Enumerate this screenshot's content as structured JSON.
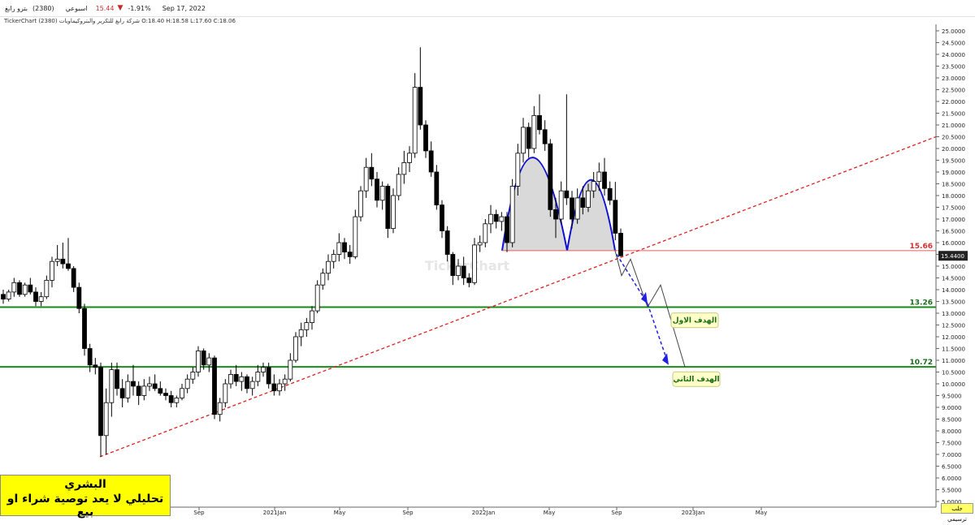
{
  "header": {
    "symbol": "بترو رابغ",
    "code": "(2380)",
    "market": "اسبوعي",
    "price": "15.44",
    "change_pct": "-1.91%",
    "date": "Sep 17, 2022",
    "ohlc_line": "TickerChart شركة رابغ للتكرير والبتروكيماويات (2380) O:18.40 H:18.58 L:17.60 C:18.06"
  },
  "watermark": "TickerChart",
  "disclaimer": {
    "line1": "البشري",
    "line2": "تحليلي لا يعد توصية شراء او بيع"
  },
  "bottom_button": "جلب ترسيمي",
  "colors": {
    "support": "#1a8a1a",
    "trendline": "#e02020",
    "pattern_line": "#1010d0",
    "neckline": "#e06060",
    "pattern_fill": "#d9d9d9",
    "target_fill": "#ffffc8",
    "target_text": "#1a6a1a",
    "projection": "#2020e0"
  },
  "chart_data": {
    "type": "candlestick",
    "ylim": [
      5.0,
      25.0
    ],
    "yticks": [
      "25.0000",
      "24.5000",
      "24.0000",
      "23.5000",
      "23.0000",
      "22.5000",
      "22.0000",
      "21.5000",
      "21.0000",
      "20.5000",
      "20.0000",
      "19.5000",
      "19.0000",
      "18.5000",
      "18.0000",
      "17.5000",
      "17.0000",
      "16.5000",
      "16.0000",
      "15.5000",
      "15.0000",
      "14.5000",
      "14.0000",
      "13.5000",
      "13.0000",
      "12.5000",
      "12.0000",
      "11.5000",
      "11.0000",
      "10.5000",
      "10.0000",
      "9.5000",
      "9.0000",
      "8.5000",
      "8.0000",
      "7.5000",
      "7.0000",
      "6.5000",
      "6.0000",
      "5.5000",
      "5.0000"
    ],
    "xlabels": [
      "Sep",
      "2021Jan",
      "May",
      "Sep",
      "2022Jan",
      "May",
      "Sep",
      "2023Jan",
      "May"
    ],
    "levels": [
      {
        "label": "15.66",
        "value": 15.66,
        "kind": "neckline"
      },
      {
        "label": "13.26",
        "value": 13.26,
        "kind": "support"
      },
      {
        "label": "10.72",
        "value": 10.72,
        "kind": "support"
      }
    ],
    "last_price_label": "15.4400",
    "targets": [
      {
        "text": "الهدف الاول",
        "value": 12.7
      },
      {
        "text": "الهدف الثاني",
        "value": 10.2
      }
    ],
    "trendline": {
      "from": {
        "week": 2020.43,
        "price": 6.9
      },
      "to": {
        "week": 2023.62,
        "price": 20.5
      }
    },
    "candles": [
      [
        13.8,
        14.0,
        13.4,
        13.6
      ],
      [
        13.6,
        14.0,
        13.5,
        13.9
      ],
      [
        13.9,
        14.5,
        13.7,
        14.3
      ],
      [
        14.3,
        14.4,
        13.7,
        13.8
      ],
      [
        13.8,
        14.3,
        13.7,
        14.2
      ],
      [
        14.2,
        14.5,
        13.8,
        13.9
      ],
      [
        13.9,
        14.1,
        13.3,
        13.5
      ],
      [
        13.5,
        13.9,
        13.3,
        13.7
      ],
      [
        13.7,
        14.6,
        13.6,
        14.4
      ],
      [
        14.4,
        15.4,
        14.1,
        15.2
      ],
      [
        15.2,
        15.9,
        15.0,
        15.3
      ],
      [
        15.3,
        16.0,
        14.9,
        15.1
      ],
      [
        15.1,
        16.2,
        14.8,
        14.9
      ],
      [
        14.9,
        15.0,
        13.9,
        14.1
      ],
      [
        14.1,
        14.3,
        13.0,
        13.2
      ],
      [
        13.2,
        13.4,
        11.2,
        11.5
      ],
      [
        11.5,
        11.7,
        10.5,
        10.8
      ],
      [
        10.8,
        11.1,
        10.4,
        10.7
      ],
      [
        10.7,
        10.9,
        6.9,
        7.8
      ],
      [
        7.8,
        9.8,
        7.0,
        9.2
      ],
      [
        9.2,
        10.9,
        8.6,
        10.6
      ],
      [
        10.6,
        10.9,
        9.5,
        9.8
      ],
      [
        9.8,
        10.2,
        9.0,
        9.4
      ],
      [
        9.4,
        10.4,
        9.2,
        10.1
      ],
      [
        10.1,
        10.8,
        9.5,
        9.9
      ],
      [
        9.9,
        10.1,
        9.1,
        9.5
      ],
      [
        9.5,
        10.2,
        9.3,
        9.9
      ],
      [
        9.9,
        10.3,
        9.7,
        10.0
      ],
      [
        10.0,
        10.4,
        9.7,
        9.8
      ],
      [
        9.8,
        10.1,
        9.5,
        9.6
      ],
      [
        9.6,
        9.8,
        9.3,
        9.5
      ],
      [
        9.5,
        9.7,
        9.0,
        9.2
      ],
      [
        9.2,
        9.5,
        9.0,
        9.4
      ],
      [
        9.4,
        10.0,
        9.3,
        9.8
      ],
      [
        9.8,
        10.4,
        9.6,
        10.2
      ],
      [
        10.2,
        10.7,
        10.0,
        10.5
      ],
      [
        10.5,
        11.6,
        10.3,
        11.4
      ],
      [
        11.4,
        11.5,
        10.6,
        10.8
      ],
      [
        10.8,
        11.3,
        10.5,
        11.1
      ],
      [
        11.1,
        11.2,
        8.5,
        8.7
      ],
      [
        8.7,
        9.4,
        8.4,
        9.2
      ],
      [
        9.2,
        10.2,
        9.0,
        10.0
      ],
      [
        10.0,
        10.6,
        9.8,
        10.4
      ],
      [
        10.4,
        10.8,
        9.9,
        10.1
      ],
      [
        10.1,
        10.5,
        9.7,
        10.3
      ],
      [
        10.3,
        10.4,
        9.6,
        9.8
      ],
      [
        9.8,
        10.3,
        9.5,
        10.1
      ],
      [
        10.1,
        10.8,
        9.9,
        10.5
      ],
      [
        10.5,
        10.9,
        10.3,
        10.7
      ],
      [
        10.7,
        10.9,
        9.8,
        10.0
      ],
      [
        10.0,
        10.4,
        9.5,
        9.7
      ],
      [
        9.7,
        10.2,
        9.5,
        10.0
      ],
      [
        10.0,
        10.4,
        9.7,
        10.2
      ],
      [
        10.2,
        11.3,
        10.1,
        11.0
      ],
      [
        11.0,
        12.2,
        10.9,
        12.0
      ],
      [
        12.0,
        12.6,
        11.6,
        12.3
      ],
      [
        12.3,
        12.8,
        12.0,
        12.6
      ],
      [
        12.6,
        13.3,
        12.3,
        13.1
      ],
      [
        13.1,
        14.4,
        13.0,
        14.2
      ],
      [
        14.2,
        14.9,
        14.0,
        14.7
      ],
      [
        14.7,
        15.5,
        14.4,
        15.2
      ],
      [
        15.2,
        15.7,
        14.9,
        15.5
      ],
      [
        15.5,
        16.4,
        15.2,
        16.0
      ],
      [
        16.0,
        16.2,
        15.3,
        15.6
      ],
      [
        15.6,
        15.9,
        15.1,
        15.4
      ],
      [
        15.4,
        17.4,
        15.3,
        17.1
      ],
      [
        17.1,
        18.4,
        16.9,
        18.2
      ],
      [
        18.2,
        19.6,
        17.9,
        19.2
      ],
      [
        19.2,
        19.8,
        18.4,
        18.7
      ],
      [
        18.7,
        19.0,
        17.5,
        17.8
      ],
      [
        17.8,
        18.6,
        17.4,
        18.4
      ],
      [
        18.4,
        18.5,
        16.2,
        16.6
      ],
      [
        16.6,
        18.3,
        16.4,
        18.0
      ],
      [
        18.0,
        19.2,
        17.8,
        18.9
      ],
      [
        18.9,
        19.9,
        18.5,
        19.4
      ],
      [
        19.4,
        20.1,
        19.0,
        19.8
      ],
      [
        19.8,
        23.2,
        19.6,
        22.6
      ],
      [
        22.6,
        24.3,
        20.8,
        21.0
      ],
      [
        21.0,
        21.2,
        19.6,
        19.9
      ],
      [
        19.9,
        20.3,
        18.8,
        19.0
      ],
      [
        19.0,
        19.3,
        17.4,
        17.6
      ],
      [
        17.6,
        17.8,
        16.2,
        16.5
      ],
      [
        16.5,
        16.7,
        15.2,
        15.5
      ],
      [
        15.5,
        15.6,
        14.2,
        14.6
      ],
      [
        14.6,
        15.3,
        14.4,
        15.0
      ],
      [
        15.0,
        15.4,
        14.2,
        14.5
      ],
      [
        14.5,
        14.7,
        14.1,
        14.3
      ],
      [
        14.3,
        16.2,
        14.2,
        15.9
      ],
      [
        15.9,
        16.3,
        15.6,
        16.0
      ],
      [
        16.0,
        17.0,
        15.8,
        16.8
      ],
      [
        16.8,
        17.6,
        16.4,
        17.2
      ],
      [
        17.2,
        17.4,
        16.6,
        16.9
      ],
      [
        16.9,
        17.3,
        16.5,
        17.1
      ],
      [
        17.1,
        17.3,
        15.6,
        16.0
      ],
      [
        16.0,
        18.7,
        15.8,
        18.4
      ],
      [
        18.4,
        20.2,
        18.0,
        19.8
      ],
      [
        19.8,
        21.3,
        19.4,
        20.9
      ],
      [
        20.9,
        21.1,
        19.6,
        20.0
      ],
      [
        20.0,
        21.8,
        19.8,
        21.4
      ],
      [
        21.4,
        22.3,
        20.6,
        20.8
      ],
      [
        20.8,
        21.2,
        19.9,
        20.2
      ],
      [
        20.2,
        20.4,
        17.1,
        17.4
      ],
      [
        17.4,
        17.9,
        16.2,
        17.0
      ],
      [
        17.0,
        18.6,
        16.8,
        18.2
      ],
      [
        18.2,
        22.3,
        17.6,
        17.9
      ],
      [
        17.9,
        18.2,
        16.6,
        17.0
      ],
      [
        17.0,
        18.3,
        16.8,
        17.9
      ],
      [
        17.9,
        18.4,
        17.2,
        17.5
      ],
      [
        17.5,
        18.5,
        17.3,
        18.2
      ],
      [
        18.2,
        19.0,
        17.9,
        18.6
      ],
      [
        18.6,
        19.4,
        18.2,
        19.0
      ],
      [
        19.0,
        19.6,
        18.0,
        18.3
      ],
      [
        18.3,
        18.6,
        17.6,
        17.8
      ],
      [
        17.8,
        18.58,
        16.1,
        16.4
      ],
      [
        16.4,
        16.6,
        15.4,
        15.44
      ]
    ]
  }
}
